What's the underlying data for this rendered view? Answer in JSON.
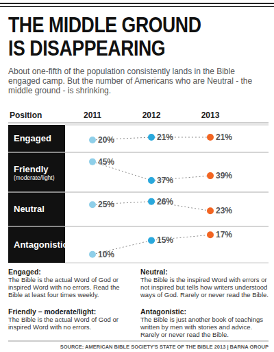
{
  "header": {
    "title": [
      "THE MIDDLE GROUND",
      "IS DISAPPEARING"
    ],
    "subtitle": "About one-fifth of the population consistently lands in the Bible engaged camp. But the number of Americans who are Neutral - the middle ground - is shrinking."
  },
  "chart_data": {
    "type": "line",
    "row_header": "Position",
    "categories": [
      "2011",
      "2012",
      "2013"
    ],
    "marker": "circle",
    "line_style": "dotted",
    "data_labels": true,
    "tick_labels": "x",
    "series": [
      {
        "name": "Engaged",
        "values": [
          20,
          21,
          21
        ],
        "value_labels": [
          "20%",
          "21%",
          "21%"
        ],
        "colors": [
          "#8fcfe9",
          "#2aa8dc",
          "#f26522"
        ],
        "ylim": [
          15.5,
          25.5
        ]
      },
      {
        "name": "Friendly",
        "subtitle": "(moderate/light)",
        "values": [
          45,
          37,
          39
        ],
        "value_labels": [
          "45%",
          "37%",
          "39%"
        ],
        "colors": [
          "#8fcfe9",
          "#2aa8dc",
          "#f26522"
        ],
        "ylim": [
          32,
          49
        ]
      },
      {
        "name": "Neutral",
        "values": [
          25,
          26,
          23
        ],
        "value_labels": [
          "25%",
          "26%",
          "23%"
        ],
        "colors": [
          "#8fcfe9",
          "#2aa8dc",
          "#f26522"
        ],
        "ylim": [
          18,
          29
        ]
      },
      {
        "name": "Antagonistic",
        "values": [
          10,
          15,
          17
        ],
        "value_labels": [
          "10%",
          "15%",
          "17%"
        ],
        "colors": [
          "#8fcfe9",
          "#2aa8dc",
          "#f26522"
        ],
        "ylim": [
          7,
          20
        ]
      }
    ]
  },
  "definitions": [
    {
      "term": "Engaged:",
      "text": "The Bible is the actual Word of God or inspired Word with no errors. Read the Bible at least four times weekly."
    },
    {
      "term": "Friendly – moderate/light:",
      "text": "The Bible is the actual Word of God or inspired Word with no errors."
    },
    {
      "term": "Neutral:",
      "text": "The Bible is the inspired Word with errors or not inspired but tells how writers understood ways of God.  Rarely or never read the Bible."
    },
    {
      "term": "Antagonistic:",
      "text": "The Bible is just another book of teachings written by men with stories and advice. Rarely or never read the Bible."
    }
  ],
  "source": "SOURCE: AMERICAN BIBLE SOCIETY'S STATE OF THE BIBLE 2013 | BARNA GROUP"
}
